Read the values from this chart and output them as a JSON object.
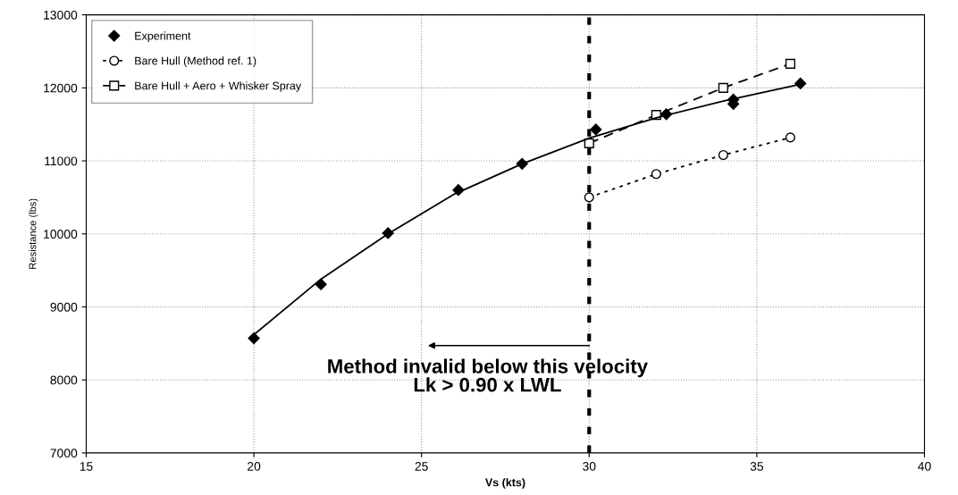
{
  "chart_data": {
    "type": "scatter",
    "xlabel": "Vs (kts)",
    "ylabel": "Resistance (lbs)",
    "xlim": [
      15,
      40
    ],
    "xticks": [
      15,
      20,
      25,
      30,
      35,
      40
    ],
    "ylim": [
      7000,
      13000
    ],
    "yticks": [
      7000,
      8000,
      9000,
      10000,
      11000,
      12000,
      13000
    ],
    "grid": true,
    "legend": "top left",
    "series": [
      {
        "name": "Experiment",
        "color": "#000000",
        "marker": "diamond",
        "x": [
          20,
          22,
          24,
          26.1,
          28,
          30.2,
          32.3,
          34.3,
          34.3,
          36.3
        ],
        "values": [
          8570,
          9310,
          10010,
          10600,
          10960,
          11430,
          11640,
          11840,
          11780,
          12060
        ]
      },
      {
        "name": "Bare Hull (Method ref. 1)",
        "type": "line",
        "color": "#000000",
        "marker": "circle",
        "line_style": "dotted",
        "x": [
          30,
          32,
          34,
          36
        ],
        "values": [
          10500,
          10820,
          11080,
          11320
        ]
      },
      {
        "name": "Bare Hull + Aero + Whisker Spray",
        "type": "line",
        "color": "#000000",
        "marker": "square",
        "line_style": "dashed",
        "x": [
          30,
          32,
          34,
          36
        ],
        "values": [
          11240,
          11630,
          12000,
          12330
        ]
      },
      {
        "type": "line",
        "color": "#000000",
        "marker": "none",
        "line_style": "solid",
        "x": [
          19.9,
          22,
          24,
          26,
          28,
          30,
          32,
          34,
          36.3
        ],
        "values": [
          8580,
          9380,
          10000,
          10550,
          10960,
          11310,
          11590,
          11820,
          12050
        ]
      }
    ],
    "ref_lines": [
      {
        "axis": "x",
        "value": 30,
        "color": "#000000",
        "line_style": "dotted"
      }
    ],
    "annotations": [
      "Method invalid below this velocity\nLk > 0.90 x LWL"
    ]
  }
}
